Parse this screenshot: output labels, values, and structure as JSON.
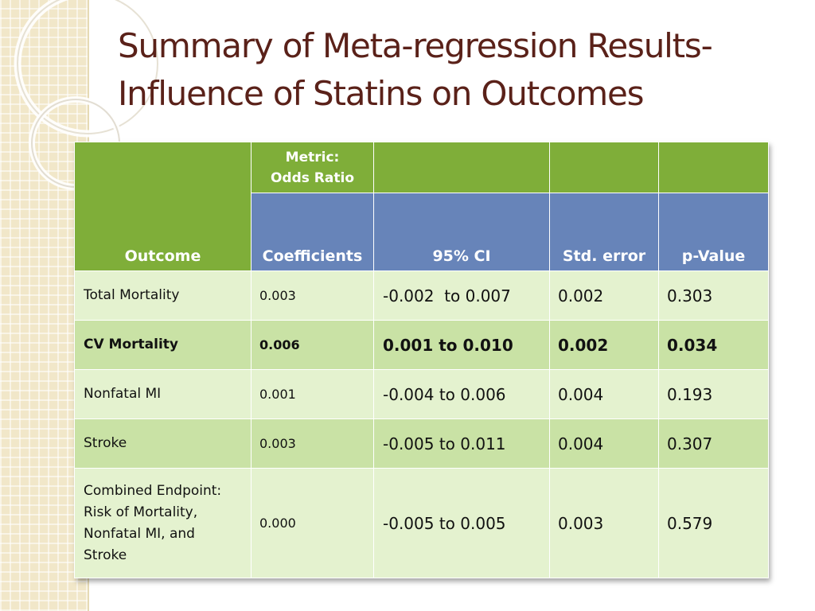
{
  "slide": {
    "title_line1": "Summary of Meta-regression Results-",
    "title_line2": "Influence of Statins on Outcomes"
  },
  "table": {
    "header": {
      "outcome": "Outcome",
      "metric_line1": "Metric:",
      "metric_line2": "Odds Ratio",
      "coefficients": "Coefficients",
      "ci": "95% CI",
      "std_error": "Std. error",
      "p_value": "p-Value"
    },
    "rows": [
      {
        "outcome": "Total Mortality",
        "coefficient": "0.003",
        "ci": "-0.002  to 0.007",
        "std_error": "0.002",
        "p_value": "0.303"
      },
      {
        "outcome": "CV Mortality",
        "coefficient": "0.006",
        "ci": "0.001 to 0.010",
        "std_error": "0.002",
        "p_value": "0.034"
      },
      {
        "outcome": "Nonfatal MI",
        "coefficient": "0.001",
        "ci": "-0.004 to 0.006",
        "std_error": "0.004",
        "p_value": "0.193"
      },
      {
        "outcome": "Stroke",
        "coefficient": "0.003",
        "ci": "-0.005 to 0.011",
        "std_error": "0.004",
        "p_value": "0.307"
      },
      {
        "outcome_lines": [
          "Combined Endpoint:",
          "Risk of Mortality,",
          "Nonfatal MI, and",
          "Stroke"
        ],
        "coefficient": "0.000",
        "ci": "-0.005 to 0.005",
        "std_error": "0.003",
        "p_value": "0.579"
      }
    ]
  },
  "colors": {
    "title": "#5a2119",
    "header_green": "#7fae39",
    "header_blue": "#6784b9",
    "row_light": "#e4f2cf",
    "row_dark": "#c9e2a5",
    "background_pattern": "#f1e7c9"
  }
}
